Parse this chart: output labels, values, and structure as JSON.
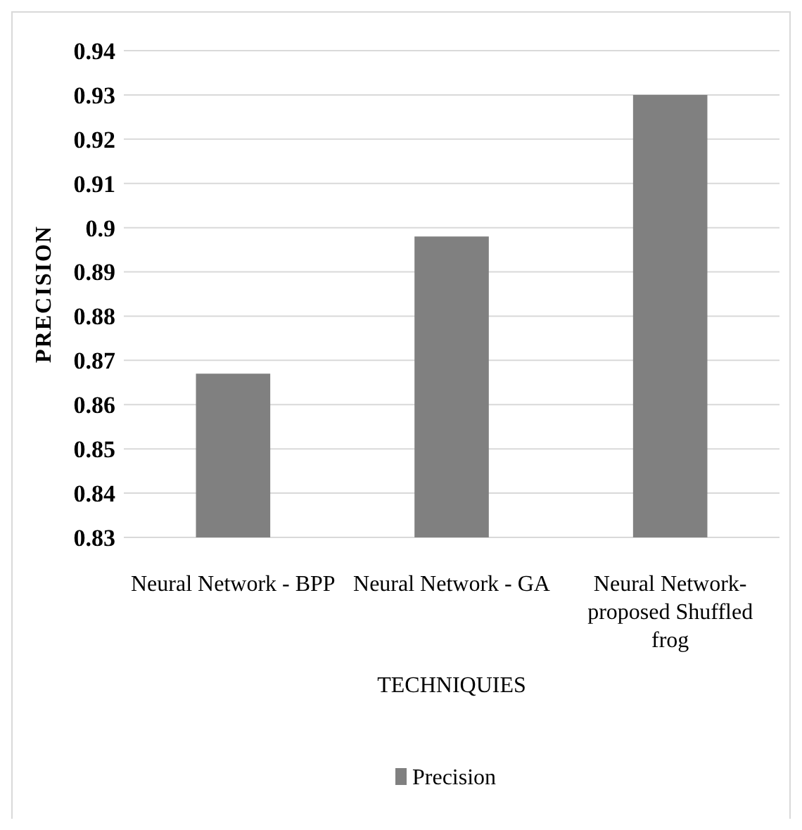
{
  "chart_data": {
    "type": "bar",
    "xlabel": "TECHNIQUIES",
    "ylabel": "PRECISION",
    "categories": [
      "Neural Network - BPP",
      "Neural Network - GA",
      "Neural Network- proposed Shuffled frog"
    ],
    "series": [
      {
        "name": "Precision",
        "color": "#808080",
        "values": [
          0.867,
          0.898,
          0.93
        ]
      }
    ],
    "ylim": [
      0.83,
      0.94
    ],
    "yticks": [
      0.83,
      0.84,
      0.85,
      0.86,
      0.87,
      0.88,
      0.89,
      0.9,
      0.91,
      0.92,
      0.93,
      0.94
    ],
    "grid": "y",
    "legend": "bottom"
  }
}
